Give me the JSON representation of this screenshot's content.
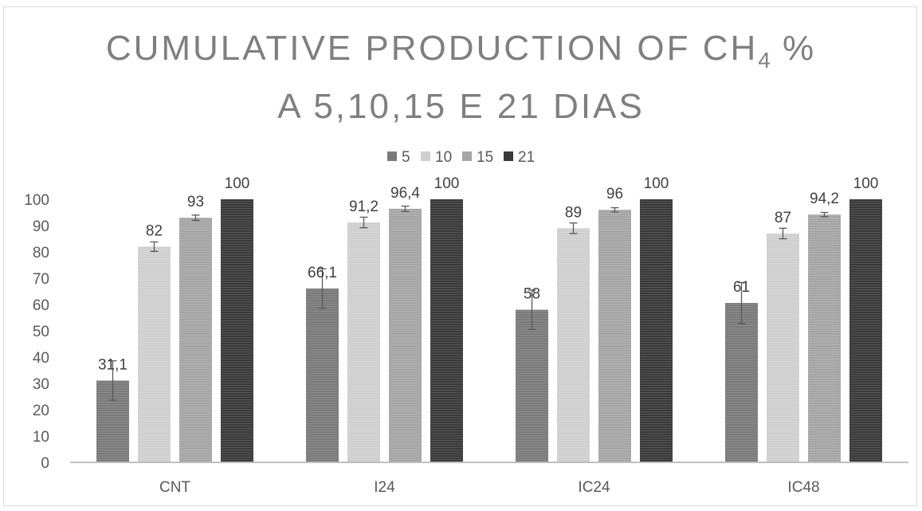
{
  "chart_data": {
    "type": "bar",
    "title": {
      "line1_main": "CUMULATIVE PRODUCTION OF CH",
      "line1_subscript": "4",
      "line1_suffix": " %",
      "line2": "A 5,10,15 E 21 DIAS"
    },
    "xlabel": "",
    "ylabel": "",
    "categories": [
      "CNT",
      "I24",
      "IC24",
      "IC48"
    ],
    "ylim": [
      0,
      100
    ],
    "yticks": [
      0,
      10,
      20,
      30,
      40,
      50,
      60,
      70,
      80,
      90,
      100
    ],
    "grid": false,
    "legend_position": "top",
    "series": [
      {
        "name": "5",
        "color": "#7a7a7a",
        "values": [
          31.1,
          66.1,
          58,
          60.6
        ],
        "labels": [
          "31,1",
          "66,1",
          "58",
          "61"
        ],
        "errors": [
          7.5,
          7.5,
          7.5,
          7.8
        ]
      },
      {
        "name": "10",
        "color": "#cfcfcf",
        "values": [
          82,
          91.2,
          89,
          87
        ],
        "labels": [
          "82",
          "91,2",
          "89",
          "87"
        ],
        "errors": [
          1.8,
          2.0,
          2.0,
          2.0
        ]
      },
      {
        "name": "15",
        "color": "#a5a5a5",
        "values": [
          93,
          96.4,
          96,
          94.2
        ],
        "labels": [
          "93",
          "96,4",
          "96",
          "94,2"
        ],
        "errors": [
          1.0,
          1.0,
          0.8,
          0.8
        ]
      },
      {
        "name": "21",
        "color": "#3a3a3a",
        "values": [
          100,
          100,
          100,
          100
        ],
        "labels": [
          "100",
          "100",
          "100",
          "100"
        ],
        "errors": [
          0,
          0,
          0,
          0
        ]
      }
    ]
  }
}
